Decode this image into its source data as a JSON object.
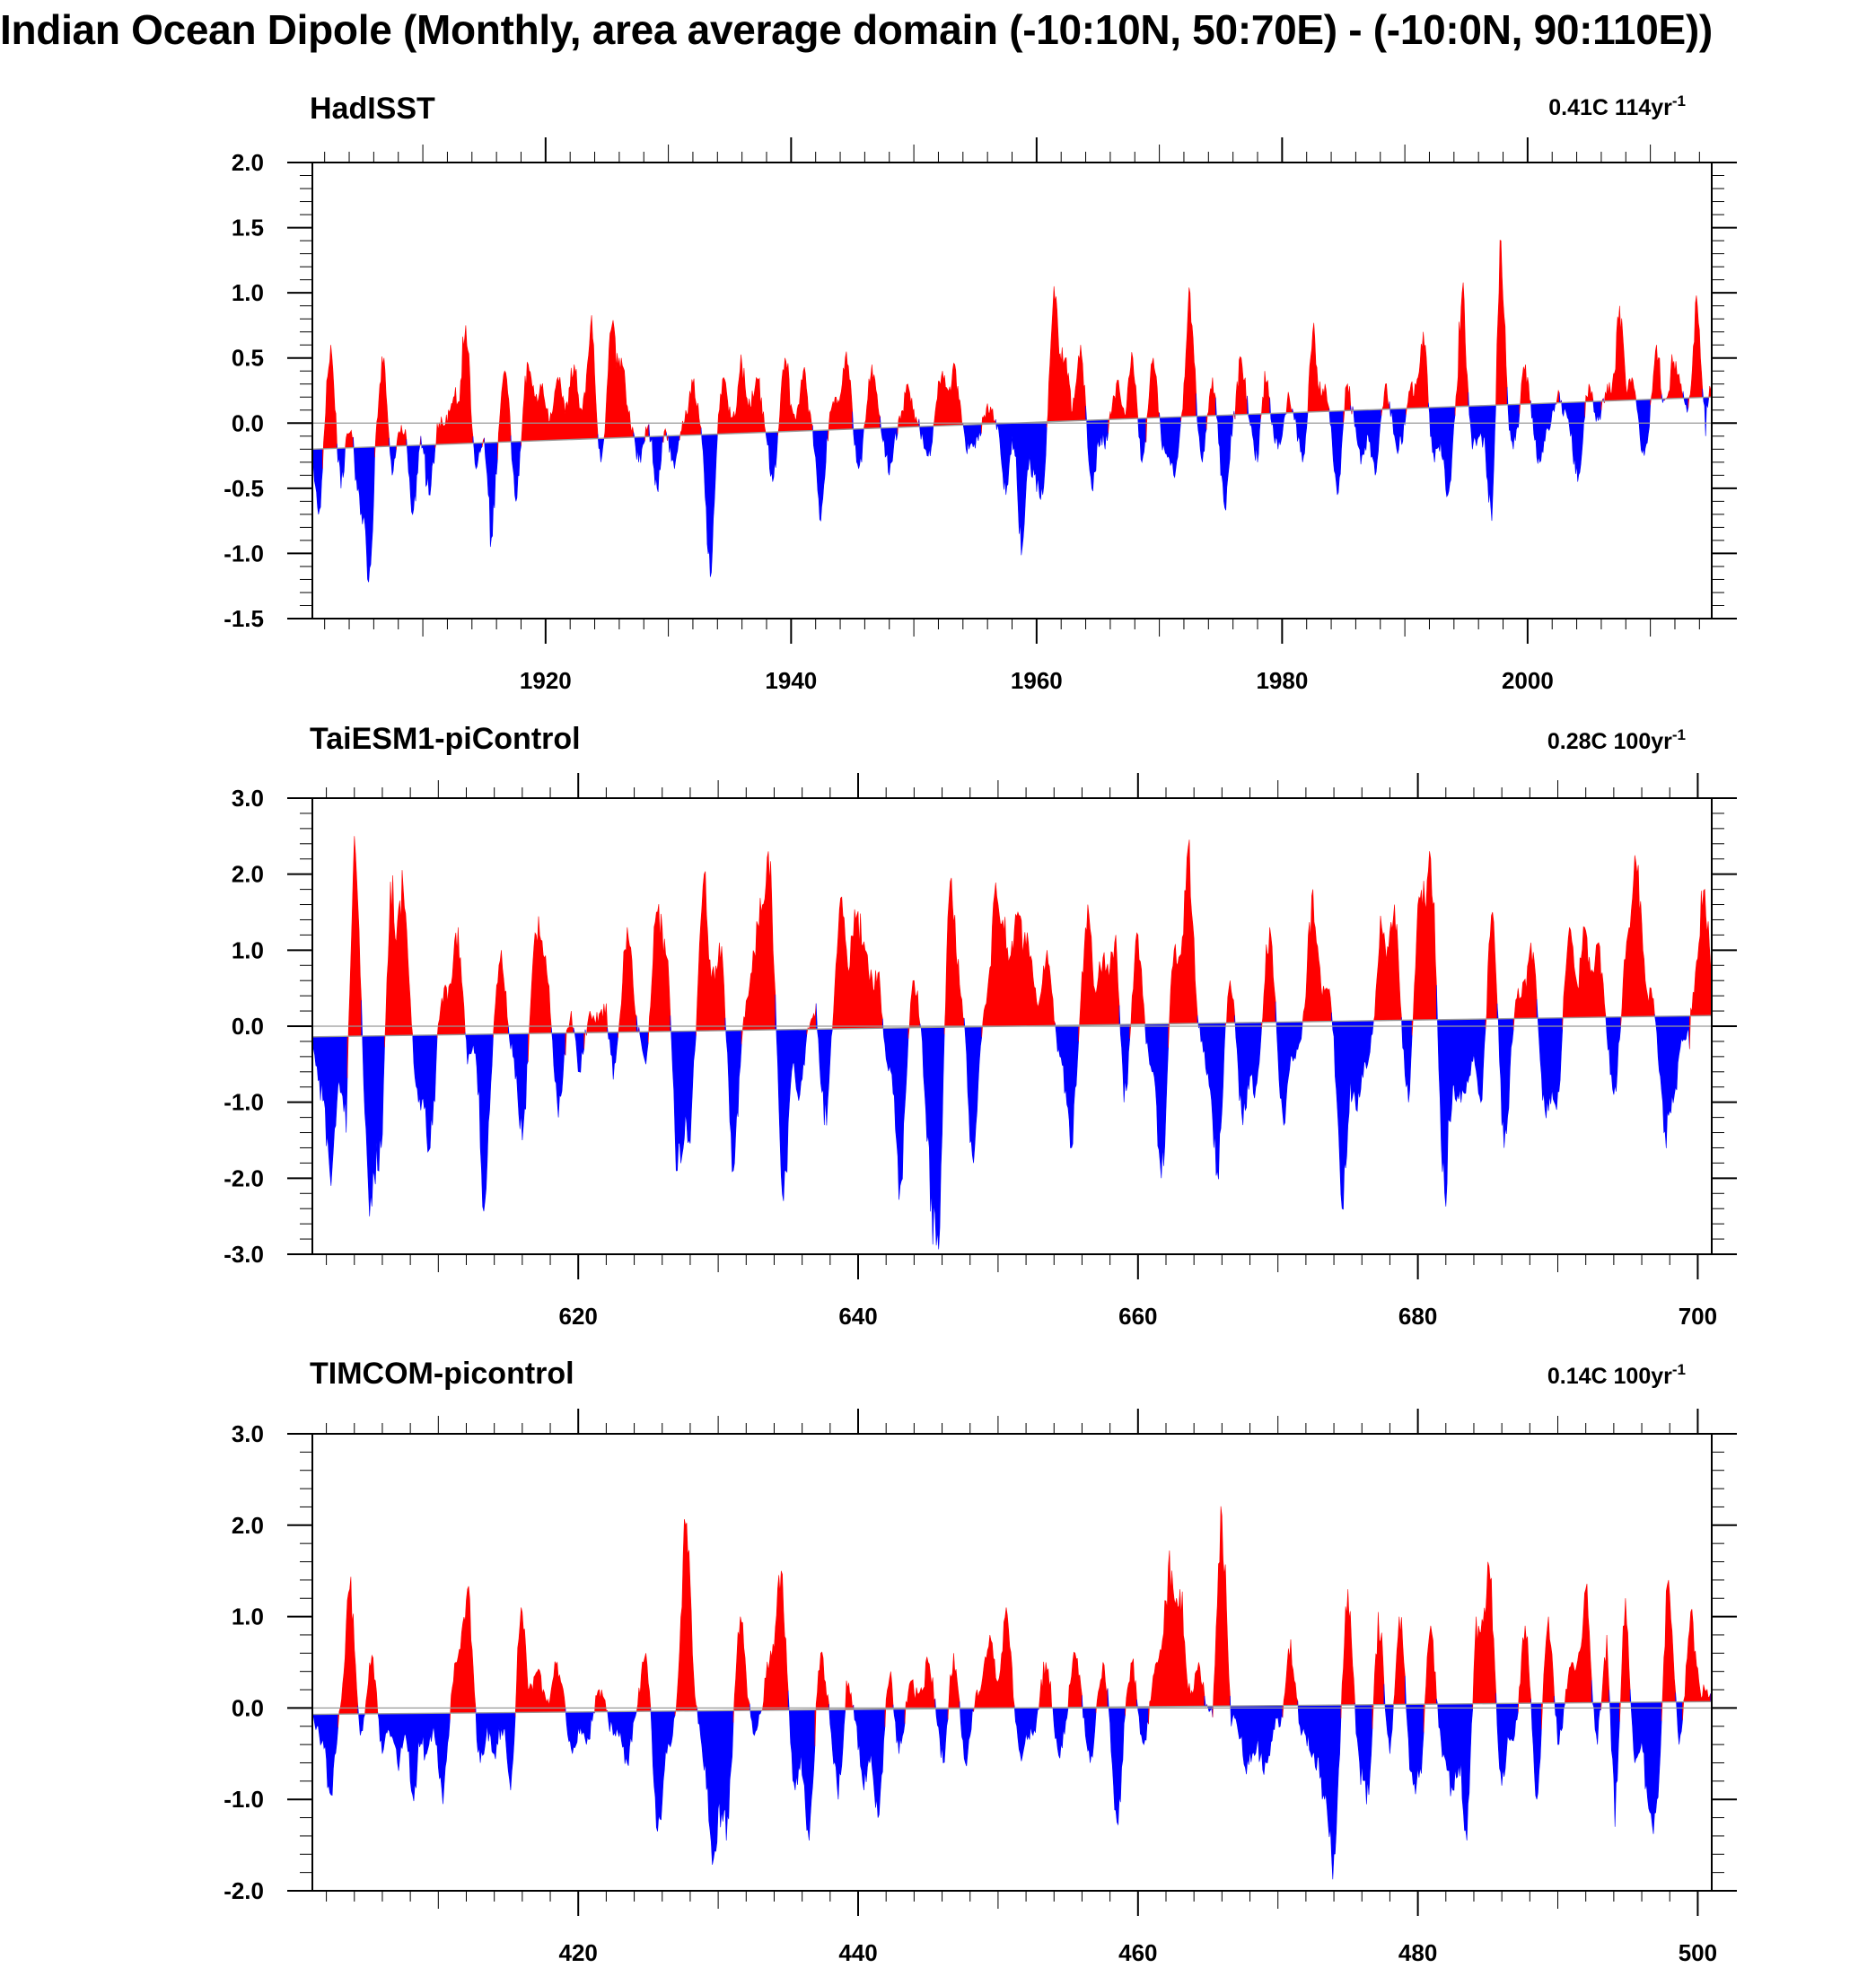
{
  "title": "Indian Ocean Dipole (Monthly, area average domain (-10:10N, 50:70E) - (-10:0N, 90:110E))",
  "colors": {
    "positive": "#ff0000",
    "negative": "#0000ff",
    "reference": "#999999",
    "frame": "#000000"
  },
  "chart_data": [
    {
      "type": "area",
      "title": "HadISST",
      "trend_label": "0.41C 114yr",
      "trend_exponent": "-1",
      "x_range": [
        1901,
        2015
      ],
      "ylim": [
        -1.5,
        2.0
      ],
      "y_ticks": [
        2.0,
        1.5,
        1.0,
        0.5,
        0.0,
        -0.5,
        -1.0,
        -1.5
      ],
      "y_tick_labels": [
        "2.0",
        "1.5",
        "1.0",
        "0.5",
        "0.0",
        "-0.5",
        "-1.0",
        "-1.5"
      ],
      "x_ticks": [
        1920,
        1940,
        1960,
        1980,
        2000
      ],
      "x_tick_labels": [
        "1920",
        "1940",
        "1960",
        "1980",
        "2000"
      ],
      "reference_line": {
        "start": -0.2,
        "end": 0.2
      },
      "peaks": [
        [
          1901.5,
          -0.7
        ],
        [
          1902.5,
          0.6
        ],
        [
          1903.3,
          -0.5
        ],
        [
          1904.8,
          -0.55
        ],
        [
          1905.6,
          -1.22
        ],
        [
          1906.8,
          0.5
        ],
        [
          1907.5,
          -0.4
        ],
        [
          1909.2,
          -0.7
        ],
        [
          1910.5,
          -0.55
        ],
        [
          1912.5,
          0.2
        ],
        [
          1913.5,
          0.75
        ],
        [
          1914.3,
          -0.35
        ],
        [
          1915.6,
          -0.88
        ],
        [
          1916.7,
          0.4
        ],
        [
          1917.6,
          -0.6
        ],
        [
          1918.6,
          0.45
        ],
        [
          1919.6,
          0.3
        ],
        [
          1921.0,
          0.35
        ],
        [
          1922.3,
          0.45
        ],
        [
          1923.7,
          0.75
        ],
        [
          1924.5,
          -0.3
        ],
        [
          1925.4,
          0.75
        ],
        [
          1926.2,
          0.5
        ],
        [
          1927.6,
          -0.3
        ],
        [
          1929.1,
          -0.5
        ],
        [
          1930.5,
          -0.35
        ],
        [
          1932.0,
          0.3
        ],
        [
          1933.4,
          -1.18
        ],
        [
          1934.5,
          0.35
        ],
        [
          1936.0,
          0.45
        ],
        [
          1937.2,
          0.35
        ],
        [
          1938.5,
          -0.45
        ],
        [
          1939.5,
          0.5
        ],
        [
          1941.0,
          0.4
        ],
        [
          1942.4,
          -0.75
        ],
        [
          1943.6,
          0.2
        ],
        [
          1944.5,
          0.55
        ],
        [
          1945.5,
          -0.35
        ],
        [
          1946.6,
          0.45
        ],
        [
          1948.0,
          -0.4
        ],
        [
          1949.5,
          0.3
        ],
        [
          1951.1,
          -0.25
        ],
        [
          1952.3,
          0.4
        ],
        [
          1953.3,
          0.45
        ],
        [
          1954.5,
          -0.2
        ],
        [
          1955.2,
          -0.1
        ],
        [
          1956.0,
          0.15
        ],
        [
          1957.5,
          -0.55
        ],
        [
          1958.8,
          -0.95
        ],
        [
          1959.8,
          -0.4
        ],
        [
          1960.5,
          -0.55
        ],
        [
          1961.4,
          1.05
        ],
        [
          1962.3,
          0.5
        ],
        [
          1963.6,
          0.6
        ],
        [
          1964.5,
          -0.5
        ],
        [
          1965.5,
          -0.15
        ],
        [
          1966.5,
          0.3
        ],
        [
          1967.8,
          0.5
        ],
        [
          1968.6,
          -0.3
        ],
        [
          1969.5,
          0.5
        ],
        [
          1970.4,
          -0.2
        ],
        [
          1971.2,
          -0.4
        ],
        [
          1972.5,
          1.0
        ],
        [
          1973.5,
          -0.3
        ],
        [
          1974.3,
          0.35
        ],
        [
          1975.3,
          -0.65
        ],
        [
          1976.7,
          0.5
        ],
        [
          1978.0,
          -0.3
        ],
        [
          1978.6,
          0.4
        ],
        [
          1979.7,
          -0.2
        ],
        [
          1980.6,
          0.2
        ],
        [
          1981.7,
          -0.3
        ],
        [
          1982.5,
          0.7
        ],
        [
          1983.5,
          0.3
        ],
        [
          1984.5,
          -0.55
        ],
        [
          1985.3,
          0.3
        ],
        [
          1986.5,
          -0.25
        ],
        [
          1987.6,
          -0.4
        ],
        [
          1988.4,
          0.3
        ],
        [
          1989.5,
          -0.2
        ],
        [
          1990.5,
          0.3
        ],
        [
          1991.5,
          0.7
        ],
        [
          1992.4,
          -0.3
        ],
        [
          1993.5,
          -0.55
        ],
        [
          1994.7,
          1.0
        ],
        [
          1995.5,
          -0.2
        ],
        [
          1996.5,
          -0.1
        ],
        [
          1997.1,
          -0.75
        ],
        [
          1997.8,
          1.4
        ],
        [
          1998.8,
          -0.2
        ],
        [
          1999.8,
          0.45
        ],
        [
          2001.0,
          -0.3
        ],
        [
          2002.5,
          0.25
        ],
        [
          2004.1,
          -0.45
        ],
        [
          2005.0,
          0.3
        ],
        [
          2006.5,
          0.3
        ],
        [
          2007.5,
          0.9
        ],
        [
          2008.5,
          0.35
        ],
        [
          2009.5,
          -0.25
        ],
        [
          2010.5,
          0.6
        ],
        [
          2011.8,
          0.45
        ],
        [
          2012.5,
          0.3
        ],
        [
          2013.8,
          0.9
        ],
        [
          2014.5,
          -0.1
        ],
        [
          2015.0,
          0.35
        ]
      ]
    },
    {
      "type": "area",
      "title": "TaiESM1-piControl",
      "trend_label": "0.28C 100yr",
      "trend_exponent": "-1",
      "x_range": [
        601,
        701
      ],
      "ylim": [
        -3.0,
        3.0
      ],
      "y_ticks": [
        3.0,
        2.0,
        1.0,
        0.0,
        -1.0,
        -2.0,
        -3.0
      ],
      "y_tick_labels": [
        "3.0",
        "2.0",
        "1.0",
        "0.0",
        "-1.0",
        "-2.0",
        "-3.0"
      ],
      "x_ticks": [
        620,
        640,
        660,
        680,
        700
      ],
      "x_tick_labels": [
        "620",
        "640",
        "660",
        "680",
        "700"
      ],
      "reference_line": {
        "start": -0.14,
        "end": 0.14
      },
      "peaks": [
        [
          601.5,
          -0.7
        ],
        [
          602.3,
          -2.1
        ],
        [
          603.4,
          -1.4
        ],
        [
          604.0,
          2.5
        ],
        [
          605.1,
          -2.5
        ],
        [
          605.9,
          -1.6
        ],
        [
          606.6,
          1.9
        ],
        [
          607.5,
          1.8
        ],
        [
          608.6,
          -1.0
        ],
        [
          609.4,
          -1.6
        ],
        [
          610.4,
          0.5
        ],
        [
          611.4,
          1.3
        ],
        [
          612.1,
          -0.5
        ],
        [
          613.3,
          -2.3
        ],
        [
          614.5,
          1.0
        ],
        [
          615.2,
          -0.3
        ],
        [
          616.0,
          -1.5
        ],
        [
          617.0,
          1.2
        ],
        [
          617.6,
          0.9
        ],
        [
          618.6,
          -1.2
        ],
        [
          619.5,
          0.2
        ],
        [
          620.1,
          -0.6
        ],
        [
          620.8,
          0.2
        ],
        [
          622.0,
          0.3
        ],
        [
          622.5,
          -0.7
        ],
        [
          623.5,
          1.3
        ],
        [
          624.8,
          -0.5
        ],
        [
          625.6,
          1.5
        ],
        [
          626.3,
          0.9
        ],
        [
          627.1,
          -1.9
        ],
        [
          627.9,
          -1.5
        ],
        [
          629.0,
          2.0
        ],
        [
          630.1,
          1.1
        ],
        [
          631.1,
          -1.9
        ],
        [
          632.2,
          0.4
        ],
        [
          632.9,
          1.3
        ],
        [
          633.6,
          2.3
        ],
        [
          634.7,
          -2.3
        ],
        [
          635.8,
          -0.9
        ],
        [
          637.0,
          0.3
        ],
        [
          637.6,
          -1.3
        ],
        [
          638.8,
          1.7
        ],
        [
          639.8,
          1.4
        ],
        [
          640.5,
          1.0
        ],
        [
          641.4,
          0.7
        ],
        [
          642.1,
          -0.5
        ],
        [
          643.0,
          -2.1
        ],
        [
          644.0,
          0.6
        ],
        [
          645.1,
          -1.6
        ],
        [
          645.7,
          -2.7
        ],
        [
          646.6,
          1.9
        ],
        [
          647.3,
          0.4
        ],
        [
          648.2,
          -1.7
        ],
        [
          649.2,
          0.3
        ],
        [
          649.9,
          1.7
        ],
        [
          650.6,
          1.0
        ],
        [
          651.4,
          1.5
        ],
        [
          652.2,
          1.1
        ],
        [
          653.5,
          1.0
        ],
        [
          654.4,
          -0.4
        ],
        [
          655.2,
          -1.6
        ],
        [
          656.4,
          1.6
        ],
        [
          657.5,
          0.9
        ],
        [
          658.4,
          1.2
        ],
        [
          659.0,
          -1.0
        ],
        [
          660.0,
          1.2
        ],
        [
          660.8,
          -0.5
        ],
        [
          661.7,
          -2.0
        ],
        [
          662.6,
          1.0
        ],
        [
          663.6,
          2.35
        ],
        [
          665.0,
          -0.6
        ],
        [
          665.7,
          -1.9
        ],
        [
          666.6,
          0.6
        ],
        [
          667.5,
          -1.3
        ],
        [
          668.4,
          -0.8
        ],
        [
          669.4,
          1.3
        ],
        [
          670.4,
          -1.3
        ],
        [
          671.3,
          -0.3
        ],
        [
          672.5,
          1.8
        ],
        [
          673.5,
          0.5
        ],
        [
          674.6,
          -2.4
        ],
        [
          675.6,
          -1.1
        ],
        [
          676.4,
          -0.5
        ],
        [
          677.4,
          1.3
        ],
        [
          678.3,
          1.6
        ],
        [
          679.3,
          -1.0
        ],
        [
          680.1,
          1.7
        ],
        [
          680.9,
          2.2
        ],
        [
          681.9,
          -2.2
        ],
        [
          682.8,
          -0.9
        ],
        [
          683.5,
          -0.7
        ],
        [
          684.5,
          -1.0
        ],
        [
          685.3,
          1.5
        ],
        [
          686.2,
          -1.6
        ],
        [
          687.2,
          0.5
        ],
        [
          688.1,
          1.1
        ],
        [
          689.1,
          -1.1
        ],
        [
          689.9,
          -1.1
        ],
        [
          690.8,
          1.3
        ],
        [
          691.9,
          1.3
        ],
        [
          692.9,
          1.1
        ],
        [
          694.0,
          -0.9
        ],
        [
          695.0,
          1.2
        ],
        [
          695.7,
          2.0
        ],
        [
          696.7,
          0.5
        ],
        [
          697.6,
          -1.4
        ],
        [
          698.3,
          -0.9
        ],
        [
          699.4,
          -0.3
        ],
        [
          699.8,
          0.7
        ],
        [
          700.5,
          1.8
        ]
      ]
    },
    {
      "type": "area",
      "title": "TIMCOM-picontrol",
      "trend_label": "0.14C 100yr",
      "trend_exponent": "-1",
      "x_range": [
        401,
        501
      ],
      "ylim": [
        -2.0,
        3.0
      ],
      "y_ticks": [
        3.0,
        2.0,
        1.0,
        0.0,
        -1.0,
        -2.0
      ],
      "y_tick_labels": [
        "3.0",
        "2.0",
        "1.0",
        "0.0",
        "-1.0",
        "-2.0"
      ],
      "x_ticks": [
        420,
        440,
        460,
        480,
        500
      ],
      "x_tick_labels": [
        "420",
        "440",
        "460",
        "480",
        "500"
      ],
      "reference_line": {
        "start": -0.07,
        "end": 0.07
      },
      "peaks": [
        [
          401.5,
          -0.3
        ],
        [
          402.3,
          -0.95
        ],
        [
          403.7,
          1.3
        ],
        [
          404.4,
          -0.3
        ],
        [
          405.3,
          0.55
        ],
        [
          406.0,
          -0.5
        ],
        [
          407.1,
          -0.6
        ],
        [
          408.2,
          -0.95
        ],
        [
          409.2,
          -0.5
        ],
        [
          410.3,
          -1.05
        ],
        [
          411.3,
          0.5
        ],
        [
          412.1,
          1.3
        ],
        [
          413.0,
          -0.6
        ],
        [
          414.0,
          -0.5
        ],
        [
          415.2,
          -0.9
        ],
        [
          415.9,
          1.1
        ],
        [
          417.1,
          0.4
        ],
        [
          418.5,
          0.5
        ],
        [
          419.6,
          -0.5
        ],
        [
          420.6,
          -0.4
        ],
        [
          421.5,
          0.2
        ],
        [
          422.5,
          -0.3
        ],
        [
          423.5,
          -0.6
        ],
        [
          424.8,
          0.6
        ],
        [
          425.7,
          -1.35
        ],
        [
          426.5,
          -0.4
        ],
        [
          427.7,
          2.0
        ],
        [
          429.1,
          -0.6
        ],
        [
          429.7,
          -1.65
        ],
        [
          430.6,
          -1.45
        ],
        [
          431.6,
          1.0
        ],
        [
          432.6,
          -0.3
        ],
        [
          433.7,
          0.5
        ],
        [
          434.5,
          1.5
        ],
        [
          435.5,
          -0.9
        ],
        [
          436.5,
          -1.45
        ],
        [
          437.3,
          0.6
        ],
        [
          438.6,
          -1.0
        ],
        [
          439.2,
          0.3
        ],
        [
          440.4,
          -0.9
        ],
        [
          441.4,
          -1.2
        ],
        [
          442.3,
          0.4
        ],
        [
          442.9,
          -0.5
        ],
        [
          443.8,
          0.3
        ],
        [
          445.0,
          0.5
        ],
        [
          446.1,
          -0.6
        ],
        [
          446.8,
          0.6
        ],
        [
          447.7,
          -0.6
        ],
        [
          448.5,
          0.2
        ],
        [
          449.4,
          0.8
        ],
        [
          450.6,
          1.1
        ],
        [
          451.6,
          -0.5
        ],
        [
          452.5,
          -0.3
        ],
        [
          453.4,
          0.5
        ],
        [
          454.4,
          -0.55
        ],
        [
          455.5,
          0.6
        ],
        [
          456.6,
          -0.6
        ],
        [
          457.5,
          0.5
        ],
        [
          458.5,
          -1.25
        ],
        [
          459.6,
          0.5
        ],
        [
          460.4,
          -0.4
        ],
        [
          461.3,
          0.5
        ],
        [
          462.2,
          1.55
        ],
        [
          463.0,
          1.3
        ],
        [
          464.3,
          0.5
        ],
        [
          465.3,
          -0.1
        ],
        [
          466.0,
          2.1
        ],
        [
          466.7,
          -0.2
        ],
        [
          467.7,
          -0.65
        ],
        [
          468.5,
          -0.4
        ],
        [
          469.2,
          -0.6
        ],
        [
          470.2,
          -0.2
        ],
        [
          470.9,
          0.75
        ],
        [
          471.7,
          -0.3
        ],
        [
          472.5,
          -0.5
        ],
        [
          473.3,
          -1.0
        ],
        [
          474.0,
          -1.6
        ],
        [
          475.0,
          1.3
        ],
        [
          475.8,
          -0.6
        ],
        [
          476.5,
          -0.95
        ],
        [
          477.2,
          1.05
        ],
        [
          478.0,
          -0.5
        ],
        [
          478.7,
          1.0
        ],
        [
          479.6,
          -0.7
        ],
        [
          480.2,
          -0.65
        ],
        [
          480.9,
          0.9
        ],
        [
          481.8,
          -0.5
        ],
        [
          482.5,
          -0.9
        ],
        [
          483.5,
          -1.45
        ],
        [
          484.2,
          1.0
        ],
        [
          485.1,
          1.55
        ],
        [
          486.0,
          -0.85
        ],
        [
          486.9,
          -0.3
        ],
        [
          487.7,
          0.9
        ],
        [
          488.5,
          -1.0
        ],
        [
          489.3,
          1.0
        ],
        [
          490.0,
          -0.4
        ],
        [
          491.0,
          0.5
        ],
        [
          492.0,
          1.3
        ],
        [
          492.8,
          -0.4
        ],
        [
          493.5,
          0.8
        ],
        [
          494.1,
          -1.3
        ],
        [
          494.8,
          1.2
        ],
        [
          495.5,
          -0.6
        ],
        [
          496.5,
          -1.1
        ],
        [
          497.1,
          -1.0
        ],
        [
          497.9,
          1.4
        ],
        [
          498.7,
          -0.4
        ],
        [
          499.5,
          1.05
        ],
        [
          500.5,
          0.2
        ]
      ]
    }
  ]
}
